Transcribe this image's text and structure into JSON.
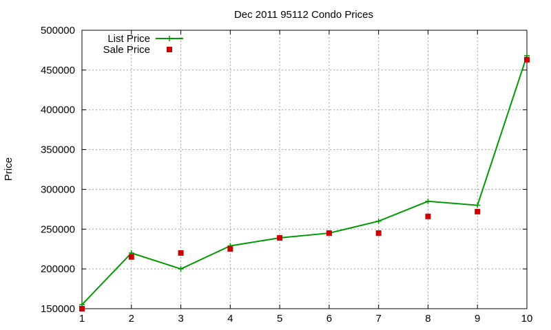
{
  "chart_data": {
    "type": "line",
    "title": "Dec 2011 95112 Condo Prices",
    "xlabel": "",
    "ylabel": "Price",
    "x": [
      1,
      2,
      3,
      4,
      5,
      6,
      7,
      8,
      9,
      10
    ],
    "xlim": [
      1,
      10
    ],
    "ylim": [
      150000,
      500000
    ],
    "xticks": [
      1,
      2,
      3,
      4,
      5,
      6,
      7,
      8,
      9,
      10
    ],
    "yticks": [
      150000,
      200000,
      250000,
      300000,
      350000,
      400000,
      450000,
      500000
    ],
    "grid": true,
    "legend_position": "top-left",
    "series": [
      {
        "name": "List Price",
        "style": "line-with-plus-markers",
        "color": "#009900",
        "values": [
          155000,
          220000,
          200000,
          229000,
          239000,
          245000,
          260000,
          285000,
          280000,
          468000
        ]
      },
      {
        "name": "Sale Price",
        "style": "square-markers",
        "color": "#cc0000",
        "values": [
          150000,
          215000,
          220000,
          225000,
          239000,
          245000,
          245000,
          266000,
          272000,
          463000
        ]
      }
    ]
  }
}
